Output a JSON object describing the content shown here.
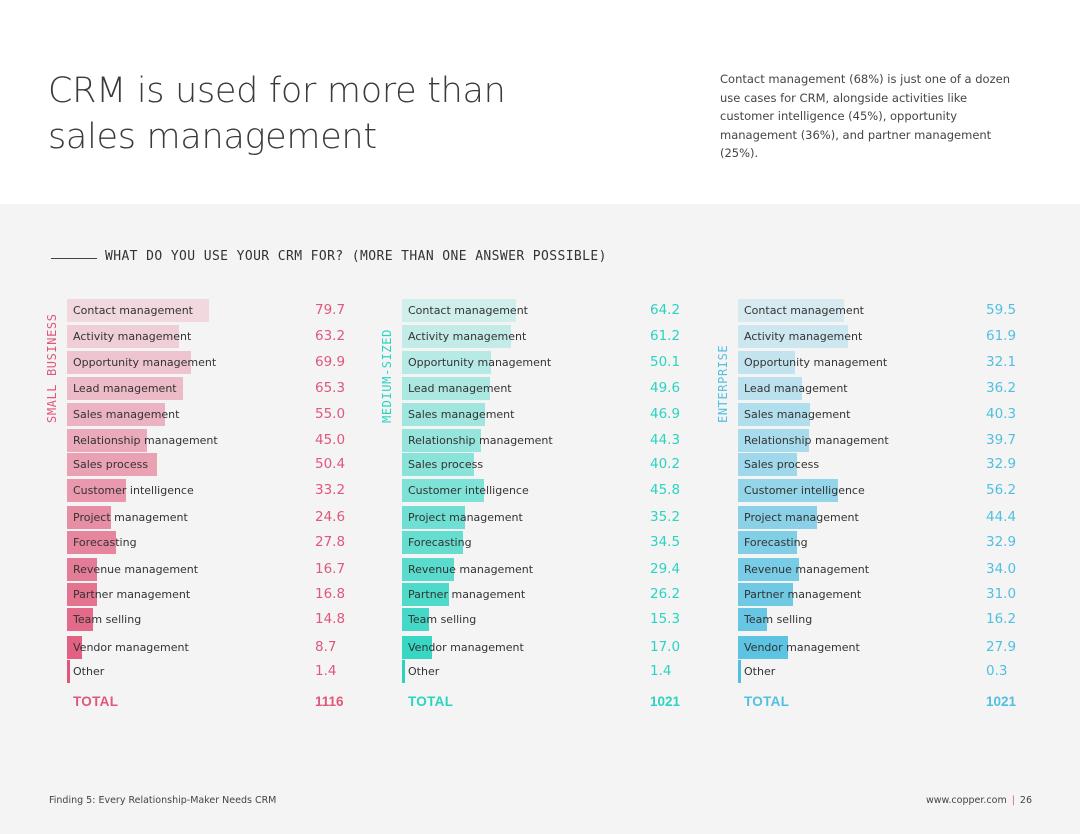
{
  "headline": {
    "line1": "CRM is used for more than",
    "line2": "sales management"
  },
  "intro": "Contact management (68%) is just one of a dozen use cases for CRM, alongside activities like customer intelligence (45%), opportunity management (36%), and partner management (25%).",
  "subtitle": "WHAT DO YOU USE YOUR CRM FOR? (MORE THAN ONE ANSWER POSSIBLE)",
  "footer": {
    "left": "Finding 5:  Every Relationship-Maker Needs CRM",
    "site": "www.copper.com",
    "separator": "|",
    "page": "26"
  },
  "colors": {
    "small_business": "#e0577a",
    "medium_sized": "#2ad4c0",
    "enterprise": "#52bfe0"
  },
  "chart_data": [
    {
      "type": "bar",
      "title": "SMALL BUSINESS",
      "categories": [
        "Contact management",
        "Activity management",
        "Opportunity management",
        "Lead management",
        "Sales management",
        "Relationship management",
        "Sales process",
        "Customer intelligence",
        "Project management",
        "Forecasting",
        "Revenue management",
        "Partner management",
        "Team selling",
        "Vendor management",
        "Other"
      ],
      "values": [
        "79.7",
        "63.2",
        "69.9",
        "65.3",
        "55.0",
        "45.0",
        "50.4",
        "33.2",
        "24.6",
        "27.8",
        "16.7",
        "16.8",
        "14.8",
        "8.7",
        "1.4"
      ],
      "total_label": "TOTAL",
      "total_value": "1116",
      "xlim": [
        0,
        100
      ]
    },
    {
      "type": "bar",
      "title": "MEDIUM-SIZED",
      "categories": [
        "Contact management",
        "Activity management",
        "Opportunity management",
        "Lead management",
        "Sales management",
        "Relationship management",
        "Sales process",
        "Customer intelligence",
        "Project management",
        "Forecasting",
        "Revenue management",
        "Partner management",
        "Team selling",
        "Vendor management",
        "Other"
      ],
      "values": [
        "64.2",
        "61.2",
        "50.1",
        "49.6",
        "46.9",
        "44.3",
        "40.2",
        "45.8",
        "35.2",
        "34.5",
        "29.4",
        "26.2",
        "15.3",
        "17.0",
        "1.4"
      ],
      "total_label": "TOTAL",
      "total_value": "1021",
      "xlim": [
        0,
        100
      ]
    },
    {
      "type": "bar",
      "title": "ENTERPRISE",
      "categories": [
        "Contact management",
        "Activity management",
        "Opportunity management",
        "Lead management",
        "Sales management",
        "Relationship management",
        "Sales process",
        "Customer intelligence",
        "Project management",
        "Forecasting",
        "Revenue management",
        "Partner management",
        "Team selling",
        "Vendor management",
        "Other"
      ],
      "values": [
        "59.5",
        "61.9",
        "32.1",
        "36.2",
        "40.3",
        "39.7",
        "32.9",
        "56.2",
        "44.4",
        "32.9",
        "34.0",
        "31.0",
        "16.2",
        "27.9",
        "0.3"
      ],
      "total_label": "TOTAL",
      "total_value": "1021",
      "xlim": [
        0,
        100
      ]
    }
  ]
}
